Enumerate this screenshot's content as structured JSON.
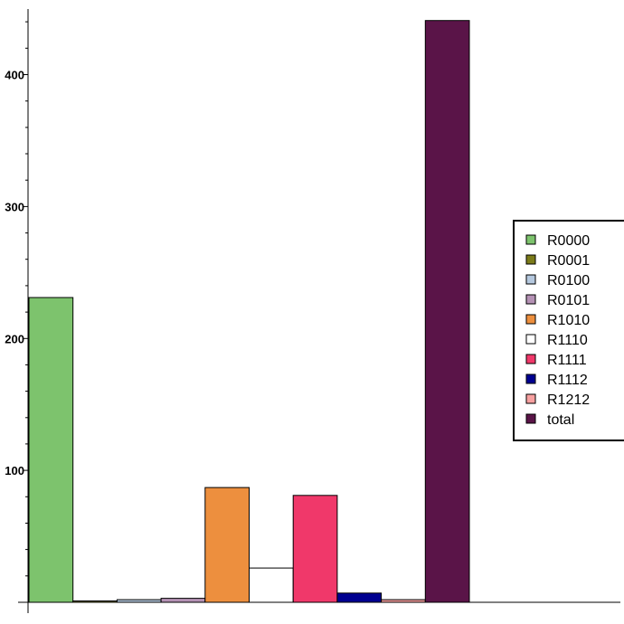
{
  "chart_data": {
    "type": "bar",
    "title": "",
    "xlabel": "",
    "ylabel": "",
    "ylim": [
      0,
      440
    ],
    "yticks": [
      100,
      200,
      300,
      400
    ],
    "grid": false,
    "legend_position": "right",
    "series": [
      {
        "name": "R0000",
        "value": 231,
        "color": "#7dc36d"
      },
      {
        "name": "R0001",
        "value": 1,
        "color": "#7b7b1a"
      },
      {
        "name": "R0100",
        "value": 2,
        "color": "#b5c8de"
      },
      {
        "name": "R0101",
        "value": 3,
        "color": "#b592b5"
      },
      {
        "name": "R1010",
        "value": 87,
        "color": "#ed8f3e"
      },
      {
        "name": "R1110",
        "value": 26,
        "color": "#ffffff"
      },
      {
        "name": "R1111",
        "value": 81,
        "color": "#f0386a"
      },
      {
        "name": "R1112",
        "value": 7,
        "color": "#000090"
      },
      {
        "name": "R1212",
        "value": 2,
        "color": "#f7a0a0"
      },
      {
        "name": "total",
        "value": 441,
        "color": "#5a1448"
      }
    ]
  }
}
